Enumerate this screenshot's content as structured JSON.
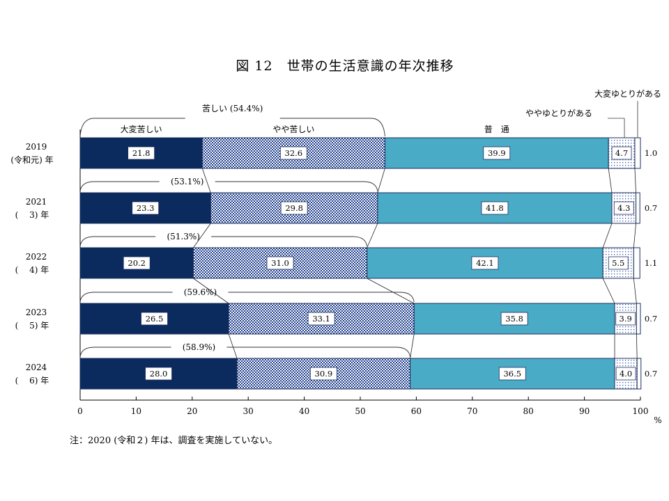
{
  "chart_data": {
    "type": "bar",
    "orientation": "horizontal",
    "stacked": true,
    "title": "図 12　世帯の生活意識の年次推移",
    "categories": [
      {
        "year": "2019",
        "era": "(令和元) 年"
      },
      {
        "year": "2021",
        "era": "(　 3) 年"
      },
      {
        "year": "2022",
        "era": "(　 4) 年"
      },
      {
        "year": "2023",
        "era": "(　 5) 年"
      },
      {
        "year": "2024",
        "era": "(　 6) 年"
      }
    ],
    "series": [
      {
        "name": "大変苦しい",
        "color": "#0b2a5e",
        "pattern": "solid",
        "values": [
          21.8,
          23.3,
          20.2,
          26.5,
          28.0
        ]
      },
      {
        "name": "やや苦しい",
        "color": "#1c3c8c",
        "pattern": "checker",
        "values": [
          32.6,
          29.8,
          31.0,
          33.1,
          30.9
        ]
      },
      {
        "name": "普　通",
        "color": "#4aabc7",
        "pattern": "solid",
        "values": [
          39.9,
          41.8,
          42.1,
          35.8,
          36.5
        ]
      },
      {
        "name": "ややゆとりがある",
        "color": "#3b5aa8",
        "pattern": "dots",
        "values": [
          4.7,
          4.3,
          5.5,
          3.9,
          4.0
        ]
      },
      {
        "name": "大変ゆとりがある",
        "color": "#1c3c8c",
        "pattern": "outline",
        "values": [
          1.0,
          0.7,
          1.1,
          0.7,
          0.7
        ]
      }
    ],
    "value_labels": [
      [
        "21.8",
        "32.6",
        "39.9",
        "4.7",
        "1.0"
      ],
      [
        "23.3",
        "29.8",
        "41.8",
        "4.3",
        "0.7"
      ],
      [
        "20.2",
        "31.0",
        "42.1",
        "5.5",
        "1.1"
      ],
      [
        "26.5",
        "33.1",
        "35.8",
        "3.9",
        "0.7"
      ],
      [
        "28.0",
        "30.9",
        "36.5",
        "4.0",
        "0.7"
      ]
    ],
    "hard_totals": [
      "苦しい (54.4%)",
      "(53.1%)",
      "(51.3%)",
      "(59.6%)",
      "(58.9%)"
    ],
    "xlim": [
      0,
      100
    ],
    "xticks": [
      0,
      10,
      20,
      30,
      40,
      50,
      60,
      70,
      80,
      90,
      100
    ],
    "xunit": "%",
    "note": "注：2020 (令和２) 年は、調査を実施していない。"
  }
}
